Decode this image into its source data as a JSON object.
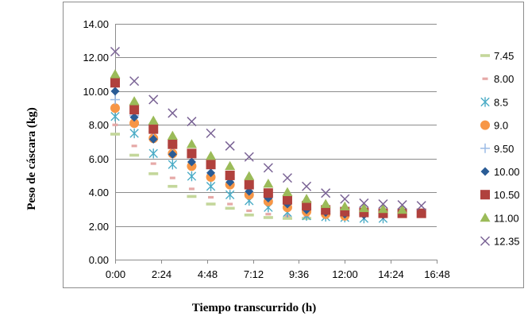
{
  "chart_data": {
    "type": "scatter",
    "title": "",
    "xlabel": "Tiempo transcurrido (h)",
    "ylabel": "Peso  de cáscara (kg)",
    "xlim": [
      "0:00",
      "16:48"
    ],
    "ylim": [
      0,
      14
    ],
    "x_ticks": [
      "0:00",
      "2:24",
      "4:48",
      "7:12",
      "9:36",
      "12:00",
      "14:24",
      "16:48"
    ],
    "y_ticks": [
      "0.00",
      "2.00",
      "4.00",
      "6.00",
      "8.00",
      "10.00",
      "12.00",
      "14.00"
    ],
    "x_unit": "hours",
    "grid": "horizontal",
    "legend_position": "right",
    "x": [
      "0:00",
      "1:00",
      "2:00",
      "3:00",
      "4:00",
      "5:00",
      "6:00",
      "7:00",
      "8:00",
      "9:00",
      "10:00",
      "11:00",
      "12:00",
      "13:00",
      "14:00",
      "15:00",
      "16:00"
    ],
    "series": [
      {
        "name": "7.45",
        "marker": "dash",
        "color": "#c4d79b",
        "values": [
          7.45,
          6.2,
          5.1,
          4.35,
          3.75,
          3.3,
          3.05,
          2.65,
          2.5,
          2.45,
          2.45,
          null,
          null,
          null,
          null,
          null,
          null
        ]
      },
      {
        "name": "8.00",
        "marker": "small-dash",
        "color": "#e6a9a7",
        "values": [
          8.0,
          6.75,
          5.7,
          4.85,
          4.2,
          3.7,
          3.3,
          2.9,
          2.7,
          2.6,
          2.55,
          null,
          null,
          null,
          null,
          null,
          null
        ]
      },
      {
        "name": "8.5",
        "marker": "star",
        "color": "#4bacc6",
        "values": [
          8.5,
          7.5,
          6.3,
          5.65,
          4.95,
          4.35,
          3.85,
          3.5,
          3.1,
          2.8,
          2.6,
          2.55,
          2.5,
          2.45,
          2.45,
          null,
          null
        ]
      },
      {
        "name": "9.0",
        "marker": "circle",
        "color": "#f79646",
        "values": [
          9.0,
          8.1,
          7.2,
          6.3,
          5.55,
          4.9,
          4.45,
          3.85,
          3.45,
          3.1,
          2.85,
          2.7,
          2.6,
          null,
          null,
          null,
          null
        ]
      },
      {
        "name": "9.50",
        "marker": "plus",
        "color": "#9bbbe5",
        "values": [
          9.5,
          8.55,
          7.6,
          6.8,
          6.05,
          5.4,
          4.85,
          4.3,
          3.8,
          3.35,
          3.05,
          2.85,
          2.75,
          2.7,
          2.65,
          null,
          null
        ]
      },
      {
        "name": "10.00",
        "marker": "diamond",
        "color": "#2a5c96",
        "values": [
          10.0,
          8.45,
          7.15,
          6.25,
          5.8,
          5.15,
          4.6,
          4.05,
          3.65,
          3.3,
          2.95,
          2.8,
          2.7,
          2.65,
          2.65,
          null,
          null
        ]
      },
      {
        "name": "10.50",
        "marker": "square",
        "color": "#b0413d",
        "values": [
          10.5,
          8.9,
          7.75,
          6.85,
          6.3,
          5.65,
          5.0,
          4.45,
          3.95,
          3.55,
          3.2,
          2.95,
          2.85,
          2.8,
          2.75,
          2.75,
          2.75
        ]
      },
      {
        "name": "11.00",
        "marker": "triangle",
        "color": "#9bbb59",
        "values": [
          11.0,
          9.4,
          8.25,
          7.35,
          6.85,
          6.15,
          5.55,
          4.95,
          4.5,
          4.0,
          3.6,
          3.3,
          3.15,
          3.05,
          3.0,
          2.95,
          null
        ]
      },
      {
        "name": "12.35",
        "marker": "x",
        "color": "#7a6395",
        "values": [
          12.35,
          10.6,
          9.5,
          8.7,
          8.2,
          7.5,
          6.75,
          6.1,
          5.45,
          4.85,
          4.35,
          3.95,
          3.6,
          3.35,
          3.3,
          3.25,
          3.2
        ]
      }
    ]
  }
}
